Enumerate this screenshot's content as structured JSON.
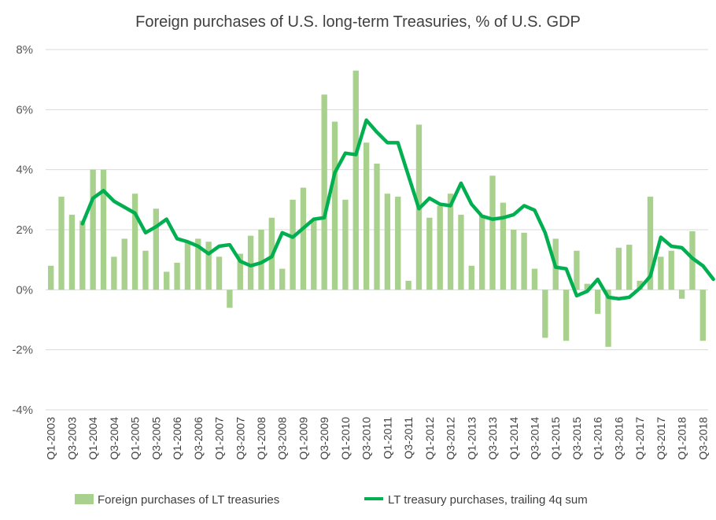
{
  "chart_data": {
    "type": "bar+line",
    "title": "Foreign purchases of U.S. long-term Treasuries, % of U.S. GDP",
    "xlabel": "",
    "ylabel": "",
    "ylim": [
      -4,
      8
    ],
    "y_ticks": [
      8,
      6,
      4,
      2,
      0,
      -2,
      -4
    ],
    "y_tick_labels": [
      "8%",
      "6%",
      "4%",
      "2%",
      "0%",
      "-2%",
      "-4%"
    ],
    "x_tick_labels": [
      "Q1-2003",
      "Q3-2003",
      "Q1-2004",
      "Q3-2004",
      "Q1-2005",
      "Q3-2005",
      "Q1-2006",
      "Q3-2006",
      "Q1-2007",
      "Q3-2007",
      "Q1-2008",
      "Q3-2008",
      "Q1-2009",
      "Q3-2009",
      "Q1-2010",
      "Q3-2010",
      "Q1-2011",
      "Q3-2011",
      "Q1-2012",
      "Q3-2012",
      "Q1-2013",
      "Q3-2013",
      "Q1-2014",
      "Q3-2014",
      "Q1-2015",
      "Q3-2015",
      "Q1-2016",
      "Q3-2016",
      "Q1-2017",
      "Q3-2017",
      "Q1-2018",
      "Q3-2018"
    ],
    "grid": true,
    "legend": "bottom",
    "colors": {
      "bars": "#a9d18e",
      "line": "#00b050",
      "grid": "#d9d9d9",
      "text": "#404040"
    },
    "series": [
      {
        "name": "Foreign purchases of LT treasuries",
        "type": "bar",
        "values": [
          0.8,
          3.1,
          2.5,
          2.3,
          4.0,
          4.0,
          1.1,
          1.7,
          3.2,
          1.3,
          2.7,
          0.6,
          0.9,
          1.6,
          1.7,
          1.6,
          1.1,
          -0.6,
          1.2,
          1.8,
          2.0,
          2.4,
          0.7,
          3.0,
          3.4,
          2.3,
          6.5,
          5.6,
          3.0,
          7.3,
          4.9,
          4.2,
          3.2,
          3.1,
          0.3,
          5.5,
          2.4,
          2.8,
          3.2,
          2.5,
          0.8,
          2.5,
          3.8,
          2.9,
          2.0,
          1.9,
          0.7,
          -1.6,
          1.7,
          -1.7,
          1.3,
          0.2,
          -0.8,
          -1.9,
          1.4,
          1.5,
          0.3,
          3.1,
          1.1,
          1.3,
          -0.3,
          1.95,
          -1.7
        ]
      },
      {
        "name": "LT treasury purchases, trailing 4q sum",
        "type": "line",
        "start_index": 3,
        "values": [
          2.2,
          3.05,
          3.3,
          2.95,
          2.75,
          2.55,
          1.9,
          2.1,
          2.35,
          1.7,
          1.6,
          1.45,
          1.2,
          1.45,
          1.5,
          0.95,
          0.8,
          0.9,
          1.1,
          1.9,
          1.75,
          2.05,
          2.35,
          2.4,
          3.9,
          4.55,
          4.5,
          5.65,
          5.25,
          4.9,
          4.9,
          3.8,
          2.7,
          3.05,
          2.85,
          2.8,
          3.55,
          2.85,
          2.45,
          2.35,
          2.4,
          2.5,
          2.8,
          2.65,
          1.9,
          0.75,
          0.7,
          -0.2,
          -0.05,
          0.35,
          -0.25,
          -0.3,
          -0.25,
          0.05,
          0.45,
          1.75,
          1.45,
          1.4,
          1.05,
          0.8,
          0.35
        ]
      }
    ]
  }
}
